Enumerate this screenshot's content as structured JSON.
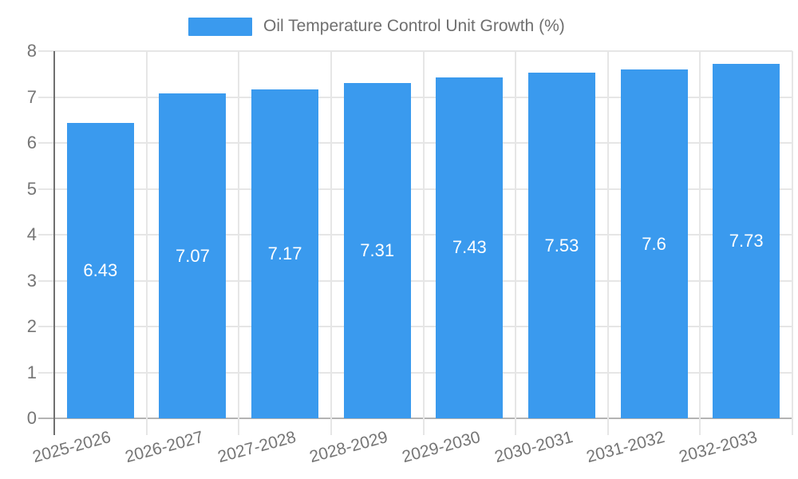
{
  "legend": {
    "label": "Oil Temperature Control Unit Growth (%)"
  },
  "chart_data": {
    "type": "bar",
    "series_name": "Oil Temperature Control Unit Growth (%)",
    "categories": [
      "2025-2026",
      "2026-2027",
      "2027-2028",
      "2028-2029",
      "2029-2030",
      "2030-2031",
      "2031-2032",
      "2032-2033"
    ],
    "values": [
      6.43,
      7.07,
      7.17,
      7.31,
      7.43,
      7.53,
      7.6,
      7.73
    ],
    "value_labels": [
      "6.43",
      "7.07",
      "7.17",
      "7.31",
      "7.43",
      "7.53",
      "7.6",
      "7.73"
    ],
    "xlabel": "",
    "ylabel": "",
    "ylim": [
      0,
      8
    ],
    "yticks": [
      0,
      1,
      2,
      3,
      4,
      5,
      6,
      7,
      8
    ],
    "grid": true,
    "legend_position": "top",
    "colors": {
      "bar": "#3a9aee",
      "gridline": "#e6e6e6",
      "baseline": "#b3b3b3",
      "y_axis": "#6f6f6f",
      "tick_text": "#757575",
      "value_text": "#ffffff",
      "background": "#ffffff"
    }
  }
}
